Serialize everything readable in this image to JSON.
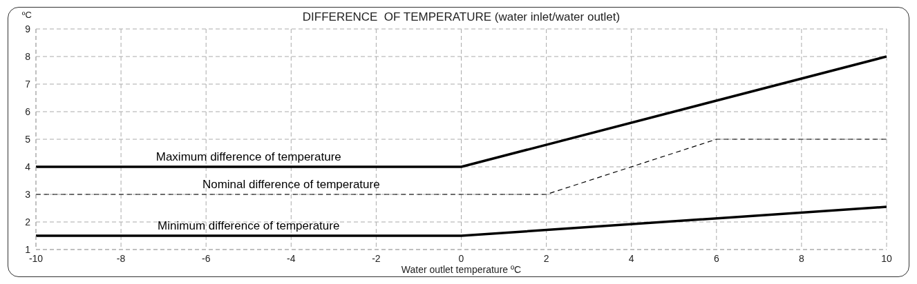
{
  "chart_data": {
    "type": "line",
    "title": "DIFFERENCE  OF TEMPERATURE (water inlet/water outlet)",
    "xlabel": "Water outlet temperature ºC",
    "ylabel": "ºC",
    "series": [
      {
        "name": "Maximum difference of temperature",
        "color": "#000000",
        "line_style": "solid",
        "x": [
          -10,
          0,
          10
        ],
        "values": [
          4,
          4,
          8
        ]
      },
      {
        "name": "Nominal difference of temperature",
        "color": "#000000",
        "line_style": "dashed",
        "x": [
          -10,
          2,
          6,
          10
        ],
        "values": [
          3,
          3,
          5,
          5
        ]
      },
      {
        "name": "Minimum difference of temperature",
        "color": "#000000",
        "line_style": "solid",
        "x": [
          -10,
          0,
          10
        ],
        "values": [
          1.5,
          1.5,
          2.55
        ]
      }
    ],
    "xlim": [
      -10,
      10
    ],
    "xticks": [
      -10,
      -8,
      -6,
      -4,
      -2,
      0,
      2,
      4,
      6,
      8,
      10
    ],
    "ylim": [
      1,
      9
    ],
    "yticks": [
      1,
      2,
      3,
      4,
      5,
      6,
      7,
      8,
      9
    ],
    "grid": true,
    "legend": false,
    "marker": "none"
  }
}
